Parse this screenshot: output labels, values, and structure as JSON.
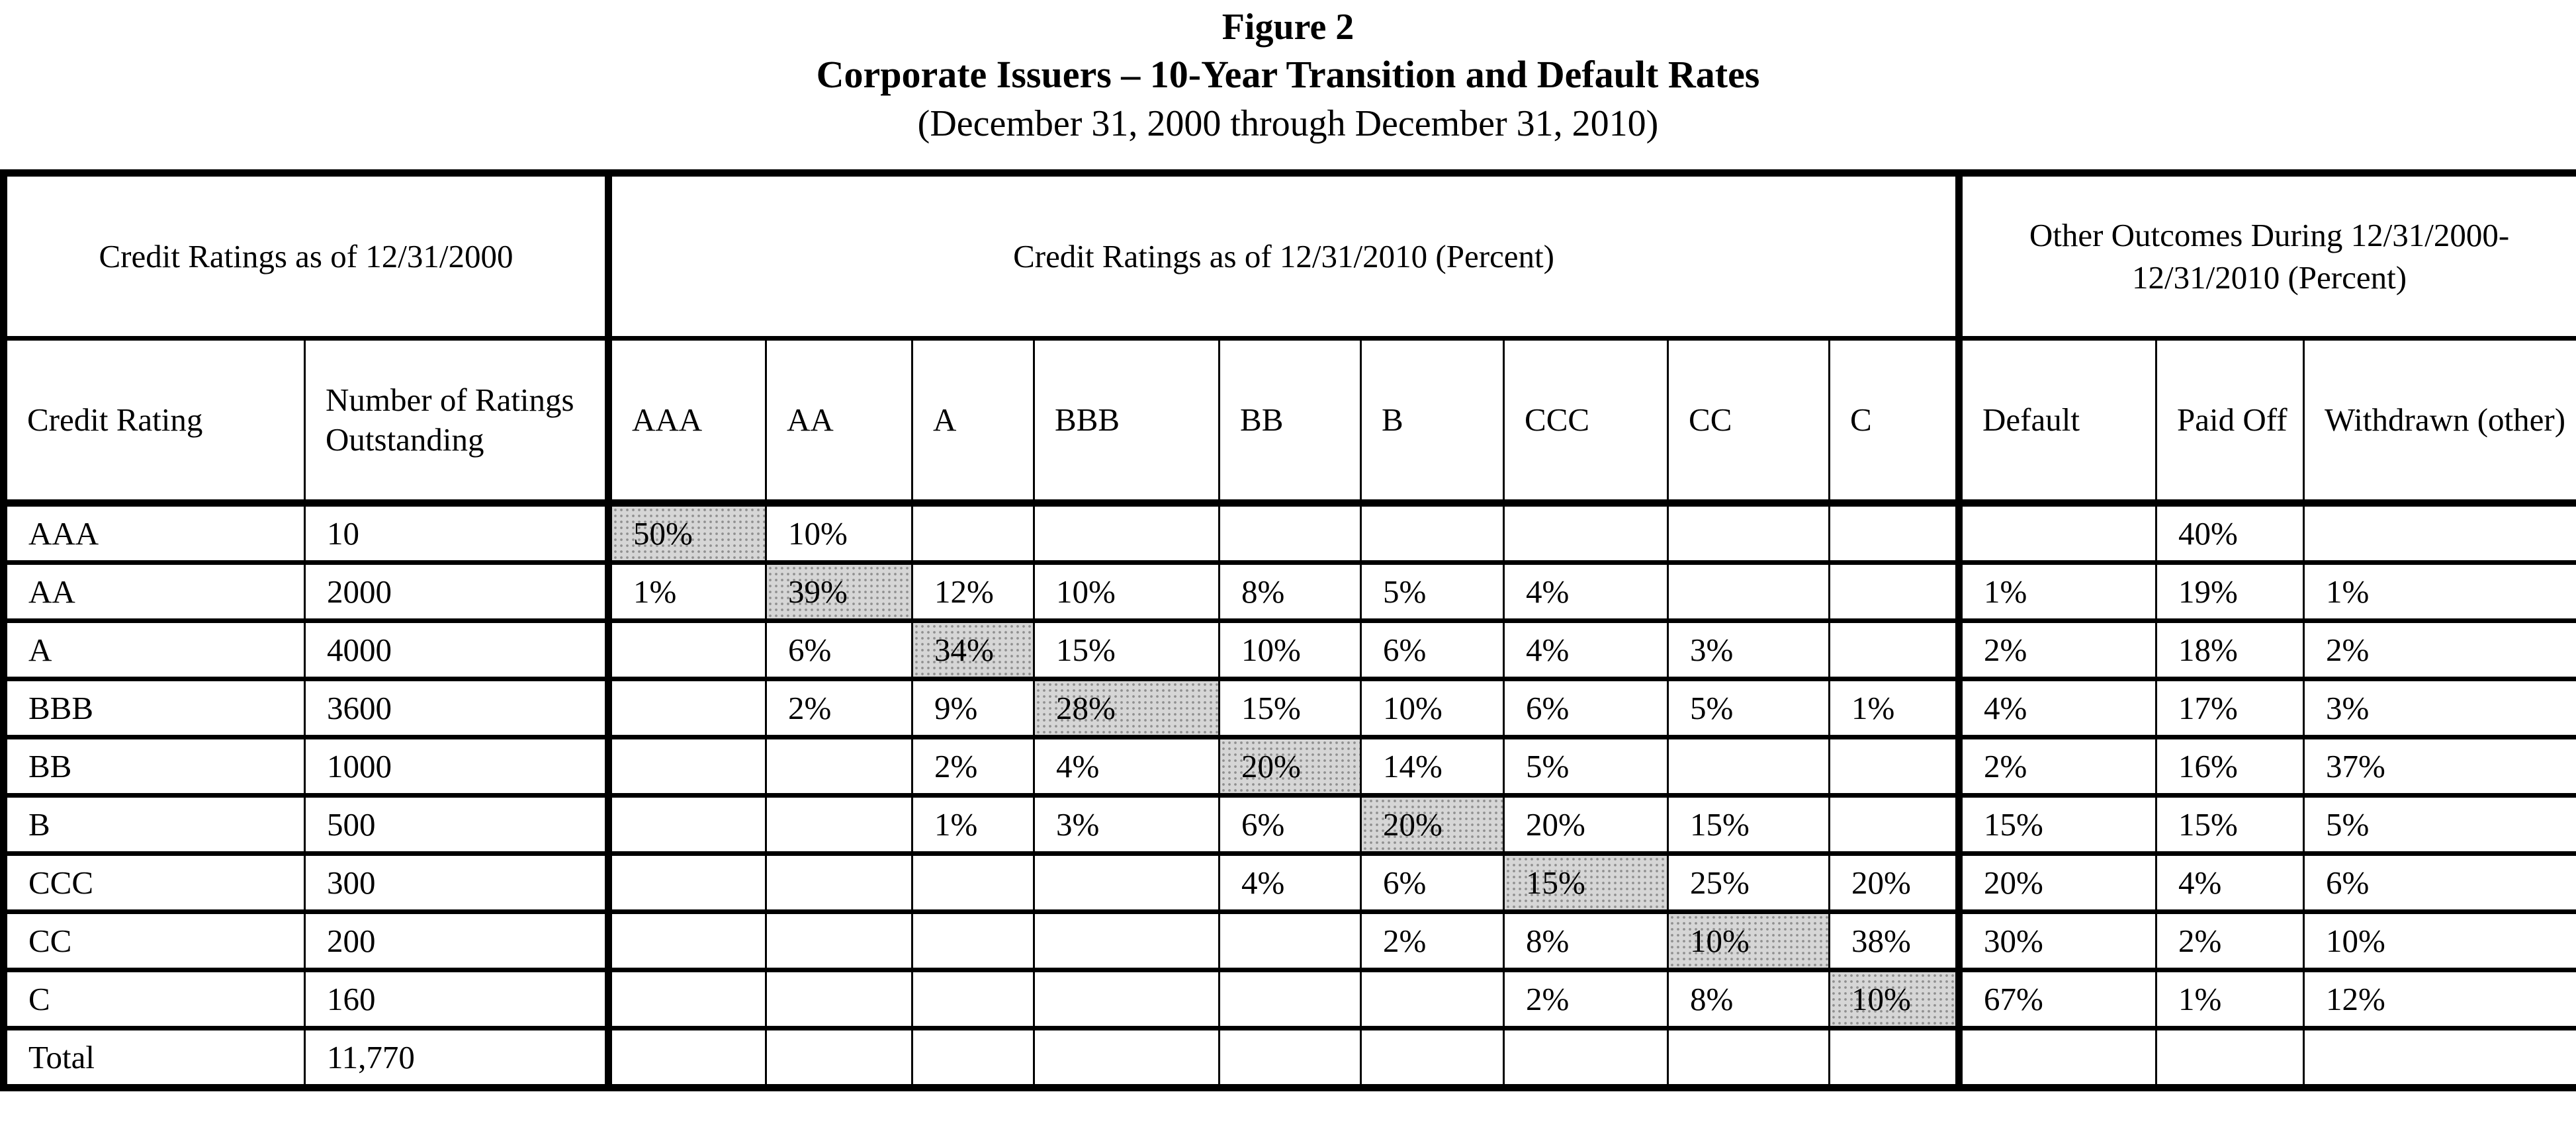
{
  "title": {
    "line1": "Figure 2",
    "line2": "Corporate Issuers – 10-Year Transition and Default Rates",
    "line3": "(December 31, 2000 through December 31, 2010)"
  },
  "colors": {
    "border": "#000000",
    "shaded_cell": "#d6d6d6",
    "shaded_dot": "#8f8f8f"
  },
  "table": {
    "header_groups": [
      {
        "label": "Credit Ratings as of 12/31/2000"
      },
      {
        "label": "Credit Ratings as of 12/31/2010 (Percent)"
      },
      {
        "label": "Other Outcomes During 12/31/2000-12/31/2010 (Percent)"
      }
    ],
    "columns": [
      "Credit Rating",
      "Number of Ratings Outstanding",
      "AAA",
      "AA",
      "A",
      "BBB",
      "BB",
      "B",
      "CCC",
      "CC",
      "C",
      "Default",
      "Paid Off",
      "Withdrawn (other)"
    ],
    "rows": [
      {
        "cells": [
          "AAA",
          "10",
          "50%",
          "10%",
          "",
          "",
          "",
          "",
          "",
          "",
          "",
          "",
          "40%",
          ""
        ],
        "shaded_col": 2
      },
      {
        "cells": [
          "AA",
          "2000",
          "1%",
          "39%",
          "12%",
          "10%",
          "8%",
          "5%",
          "4%",
          "",
          "",
          "1%",
          "19%",
          "1%"
        ],
        "shaded_col": 3
      },
      {
        "cells": [
          "A",
          "4000",
          "",
          "6%",
          "34%",
          "15%",
          "10%",
          "6%",
          "4%",
          "3%",
          "",
          "2%",
          "18%",
          "2%"
        ],
        "shaded_col": 4
      },
      {
        "cells": [
          "BBB",
          "3600",
          "",
          "2%",
          "9%",
          "28%",
          "15%",
          "10%",
          "6%",
          "5%",
          "1%",
          "4%",
          "17%",
          "3%"
        ],
        "shaded_col": 5
      },
      {
        "cells": [
          "BB",
          "1000",
          "",
          "",
          "2%",
          "4%",
          "20%",
          "14%",
          "5%",
          "",
          "",
          "2%",
          "16%",
          "37%"
        ],
        "shaded_col": 6
      },
      {
        "cells": [
          "B",
          "500",
          "",
          "",
          "1%",
          "3%",
          "6%",
          "20%",
          "20%",
          "15%",
          "",
          "15%",
          "15%",
          "5%"
        ],
        "shaded_col": 7
      },
      {
        "cells": [
          "CCC",
          "300",
          "",
          "",
          "",
          "",
          "4%",
          "6%",
          "15%",
          "25%",
          "20%",
          "20%",
          "4%",
          "6%"
        ],
        "shaded_col": 8
      },
      {
        "cells": [
          "CC",
          "200",
          "",
          "",
          "",
          "",
          "",
          "2%",
          "8%",
          "10%",
          "38%",
          "30%",
          "2%",
          "10%"
        ],
        "shaded_col": 9
      },
      {
        "cells": [
          "C",
          "160",
          "",
          "",
          "",
          "",
          "",
          "",
          "2%",
          "8%",
          "10%",
          "67%",
          "1%",
          "12%"
        ],
        "shaded_col": 10
      },
      {
        "cells": [
          "Total",
          "11,770",
          "",
          "",
          "",
          "",
          "",
          "",
          "",
          "",
          "",
          "",
          "",
          ""
        ],
        "shaded_col": -1
      }
    ]
  }
}
